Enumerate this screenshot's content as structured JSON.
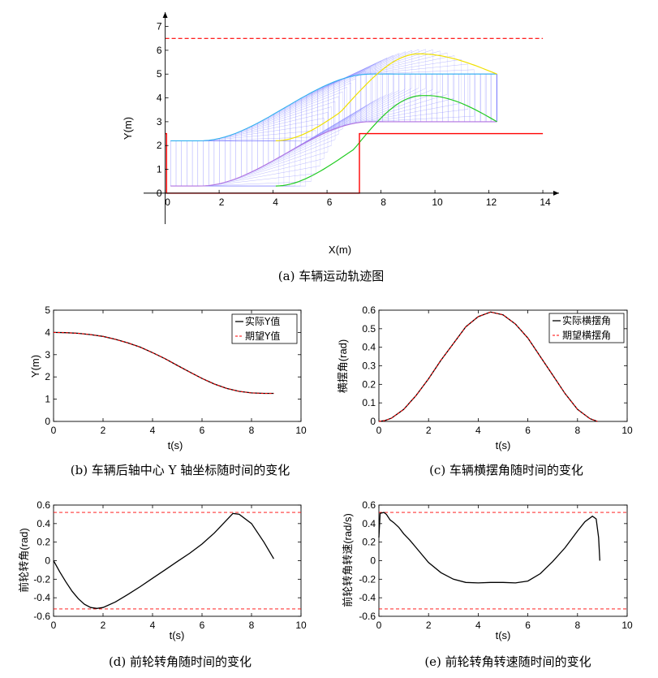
{
  "colors": {
    "axis": "#000000",
    "red": "#ff0000",
    "curve": "#000000",
    "blue": "#8080ff",
    "yellow": "#f0e000",
    "green": "#22cc22",
    "cyan": "#30b0f0"
  },
  "chart_data": [
    {
      "id": "a",
      "type": "line",
      "caption": "(a)  车辆运动轨迹图",
      "xlabel": "X(m)",
      "ylabel": "Y(m)",
      "xlim": [
        -0.8,
        14.6
      ],
      "ylim": [
        -1.3,
        7.6
      ],
      "xticks": [
        0,
        2,
        4,
        6,
        8,
        10,
        12,
        14
      ],
      "yticks": [
        0,
        1,
        2,
        3,
        4,
        5,
        6,
        7
      ],
      "road_boundary": [
        [
          0,
          2.5
        ],
        [
          0.05,
          2.5
        ],
        [
          0.05,
          0
        ],
        [
          7.2,
          0
        ],
        [
          7.2,
          2.5
        ],
        [
          14,
          2.5
        ]
      ],
      "upper_limit_y": 6.5,
      "upper_limit_x": [
        0,
        14
      ],
      "vehicle": {
        "x_start": 0.2,
        "x_end": 12.3,
        "rear_track_y": [
          0.3,
          3.0
        ],
        "front_track_y": [
          2.2,
          5.0
        ],
        "tractor_peak_y": 5.8,
        "trailer_peak_y": 4.1
      }
    },
    {
      "id": "b",
      "type": "line",
      "caption": "(b)  车辆后轴中心 Y 轴坐标随时间的变化",
      "xlabel": "t(s)",
      "ylabel": "Y(m)",
      "xlim": [
        0,
        10
      ],
      "ylim": [
        0,
        5
      ],
      "xticks": [
        0,
        2,
        4,
        6,
        8,
        10
      ],
      "yticks": [
        0,
        1,
        2,
        3,
        4,
        5
      ],
      "legend": [
        "实际Y值",
        "期望Y值"
      ],
      "series": [
        {
          "name": "实际Y值",
          "x": [
            0,
            0.5,
            1,
            1.5,
            2,
            2.5,
            3,
            3.5,
            4,
            4.5,
            5,
            5.5,
            6,
            6.5,
            7,
            7.5,
            8,
            8.5,
            8.9
          ],
          "y": [
            4.0,
            3.99,
            3.96,
            3.9,
            3.82,
            3.69,
            3.53,
            3.34,
            3.09,
            2.82,
            2.52,
            2.22,
            1.93,
            1.68,
            1.48,
            1.35,
            1.28,
            1.26,
            1.26
          ]
        },
        {
          "name": "期望Y值",
          "x": [
            0,
            0.5,
            1,
            1.5,
            2,
            2.5,
            3,
            3.5,
            4,
            4.5,
            5,
            5.5,
            6,
            6.5,
            7,
            7.5,
            8,
            8.5,
            8.9
          ],
          "y": [
            4.0,
            3.99,
            3.96,
            3.9,
            3.82,
            3.69,
            3.53,
            3.34,
            3.09,
            2.82,
            2.52,
            2.22,
            1.93,
            1.68,
            1.48,
            1.35,
            1.28,
            1.26,
            1.26
          ]
        }
      ]
    },
    {
      "id": "c",
      "type": "line",
      "caption": "(c)  车辆横摆角随时间的变化",
      "xlabel": "t(s)",
      "ylabel": "横摆角(rad)",
      "xlim": [
        0,
        10
      ],
      "ylim": [
        0,
        0.6
      ],
      "xticks": [
        0,
        2,
        4,
        6,
        8,
        10
      ],
      "yticks": [
        0,
        0.1,
        0.2,
        0.3,
        0.4,
        0.5,
        0.6
      ],
      "legend": [
        "实际横摆角",
        "期望横摆角"
      ],
      "series": [
        {
          "name": "实际横摆角",
          "x": [
            0,
            0.25,
            0.5,
            1,
            1.5,
            2,
            2.5,
            3,
            3.5,
            4,
            4.5,
            5,
            5.5,
            6,
            6.5,
            7,
            7.5,
            8,
            8.5,
            8.8
          ],
          "y": [
            0,
            0.005,
            0.017,
            0.065,
            0.14,
            0.23,
            0.33,
            0.42,
            0.51,
            0.565,
            0.59,
            0.575,
            0.525,
            0.45,
            0.35,
            0.25,
            0.15,
            0.065,
            0.015,
            0
          ]
        },
        {
          "name": "期望横摆角",
          "x": [
            0,
            0.25,
            0.5,
            1,
            1.5,
            2,
            2.5,
            3,
            3.5,
            4,
            4.5,
            5,
            5.5,
            6,
            6.5,
            7,
            7.5,
            8,
            8.5,
            8.8
          ],
          "y": [
            0,
            0.005,
            0.017,
            0.065,
            0.14,
            0.23,
            0.33,
            0.42,
            0.51,
            0.565,
            0.59,
            0.575,
            0.525,
            0.45,
            0.35,
            0.25,
            0.15,
            0.065,
            0.015,
            0
          ]
        }
      ]
    },
    {
      "id": "d",
      "type": "line",
      "caption": "(d)  前轮转角随时间的变化",
      "xlabel": "t(s)",
      "ylabel": "前轮转角(rad)",
      "xlim": [
        0,
        10
      ],
      "ylim": [
        -0.6,
        0.6
      ],
      "xticks": [
        0,
        2,
        4,
        6,
        8,
        10
      ],
      "yticks": [
        -0.6,
        -0.4,
        -0.2,
        0,
        0.2,
        0.4,
        0.6
      ],
      "limit_lines": [
        0.52,
        -0.52
      ],
      "series": [
        {
          "name": "前轮转角",
          "x": [
            0,
            0.25,
            0.5,
            0.75,
            1,
            1.25,
            1.5,
            1.75,
            2,
            2.5,
            3,
            3.5,
            4,
            4.5,
            5,
            5.5,
            6,
            6.5,
            7,
            7.25,
            7.5,
            8,
            8.5,
            8.9
          ],
          "y": [
            0.0,
            -0.12,
            -0.23,
            -0.33,
            -0.41,
            -0.47,
            -0.505,
            -0.515,
            -0.505,
            -0.445,
            -0.365,
            -0.28,
            -0.19,
            -0.1,
            -0.01,
            0.08,
            0.18,
            0.3,
            0.44,
            0.51,
            0.5,
            0.4,
            0.2,
            0.02
          ]
        }
      ]
    },
    {
      "id": "e",
      "type": "line",
      "caption": "(e)  前轮转角转速随时间的变化",
      "xlabel": "t(s)",
      "ylabel": "前轮转角转速(rad/s)",
      "xlim": [
        0,
        10
      ],
      "ylim": [
        -0.6,
        0.6
      ],
      "xticks": [
        0,
        2,
        4,
        6,
        8,
        10
      ],
      "yticks": [
        -0.6,
        -0.4,
        -0.2,
        0,
        0.2,
        0.4,
        0.6
      ],
      "limit_lines": [
        0.52,
        -0.52
      ],
      "series": [
        {
          "name": "前轮转角转速",
          "x": [
            0,
            0.05,
            0.2,
            0.3,
            0.45,
            0.6,
            0.8,
            1.0,
            1.25,
            1.5,
            2.0,
            2.5,
            3.0,
            3.5,
            4.0,
            4.5,
            5.0,
            5.5,
            6.0,
            6.5,
            7.0,
            7.5,
            8.0,
            8.3,
            8.6,
            8.75,
            8.85,
            8.9
          ],
          "y": [
            0.25,
            0.51,
            0.52,
            0.5,
            0.44,
            0.41,
            0.36,
            0.29,
            0.22,
            0.14,
            -0.02,
            -0.13,
            -0.2,
            -0.235,
            -0.24,
            -0.235,
            -0.235,
            -0.24,
            -0.22,
            -0.14,
            -0.01,
            0.14,
            0.32,
            0.42,
            0.48,
            0.45,
            0.25,
            0.0
          ]
        }
      ]
    }
  ]
}
